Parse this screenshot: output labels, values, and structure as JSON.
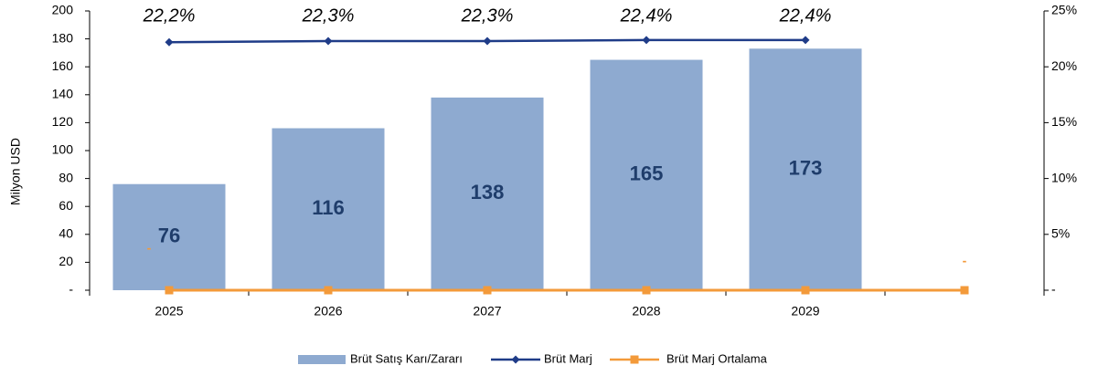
{
  "chart_data": {
    "type": "bar",
    "y_label": "Milyon USD",
    "categories": [
      "2025",
      "2026",
      "2027",
      "2028",
      "2029",
      null
    ],
    "series": [
      {
        "name": "Brüt Satış Karı/Zararı",
        "type": "bar",
        "color": "#8eaad0",
        "values": [
          76,
          116,
          138,
          165,
          173,
          null
        ]
      },
      {
        "name": "Brüt Marj",
        "type": "line",
        "axis": "y2",
        "color": "#1f3c88",
        "values": [
          22.2,
          22.3,
          22.3,
          22.4,
          22.4,
          null
        ],
        "value_labels": [
          "22,2%",
          "22,3%",
          "22,3%",
          "22,4%",
          "22,4%",
          null
        ]
      },
      {
        "name": "Brüt Marj Ortalama",
        "type": "line",
        "axis": "y2",
        "color": "#f39a3a",
        "values": [
          0,
          0,
          0,
          0,
          0,
          0
        ],
        "value_labels": [
          "-",
          null,
          null,
          null,
          null,
          "-"
        ]
      }
    ],
    "ylim": [
      0,
      200
    ],
    "yticks": [
      {
        "value": 0,
        "label": "-"
      },
      20,
      40,
      60,
      80,
      100,
      120,
      140,
      160,
      180,
      200
    ],
    "y2lim": [
      0,
      25
    ],
    "y2ticks": [
      {
        "value": 0,
        "label": "-"
      },
      {
        "value": 5,
        "label": "5%"
      },
      {
        "value": 10,
        "label": "10%"
      },
      {
        "value": 15,
        "label": "15%"
      },
      {
        "value": 20,
        "label": "20%"
      },
      {
        "value": 25,
        "label": "25%"
      }
    ],
    "legend": "bottom"
  }
}
